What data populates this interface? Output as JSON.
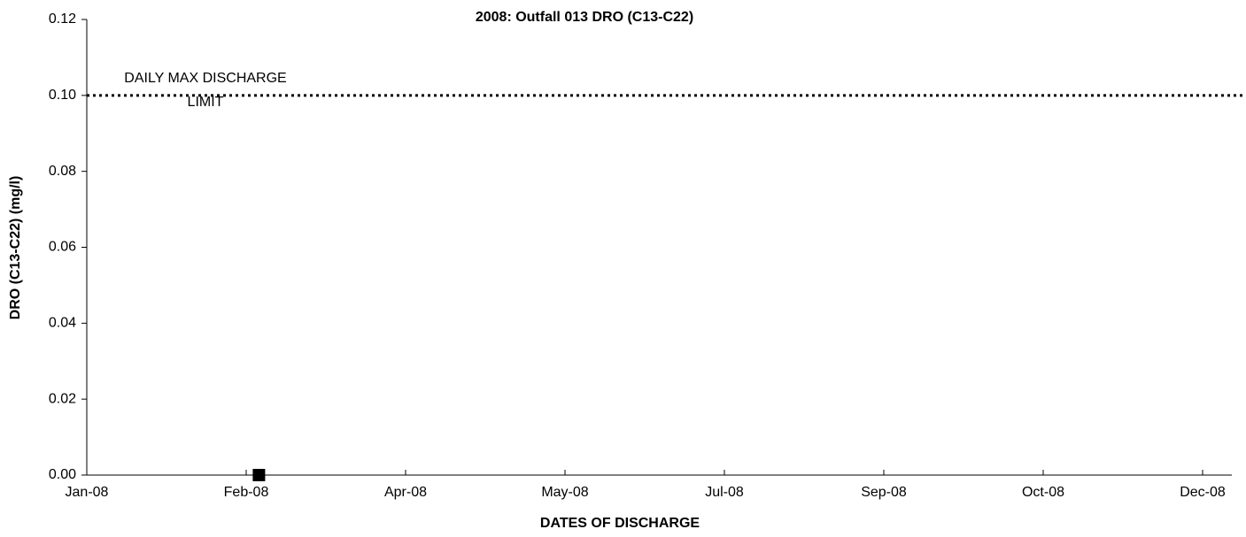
{
  "chart_data": {
    "type": "scatter",
    "title": "2008: Outfall 013 DRO (C13-C22)",
    "xlabel": "DATES OF DISCHARGE",
    "ylabel": "DRO (C13-C22) (mg/l)",
    "series": [
      {
        "color": "#000000",
        "x": [
          54
        ],
        "values": [
          0
        ]
      }
    ],
    "limit": {
      "value": 0.1,
      "label": [
        "DAILY MAX DISCHARGE",
        "LIMIT"
      ],
      "color": "#000000"
    },
    "xlim": [
      0,
      350
    ],
    "xticks": [
      {
        "value": 0,
        "label": "Jan-08"
      },
      {
        "value": 50,
        "label": "Feb-08"
      },
      {
        "value": 100,
        "label": "Apr-08"
      },
      {
        "value": 150,
        "label": "May-08"
      },
      {
        "value": 200,
        "label": "Jul-08"
      },
      {
        "value": 250,
        "label": "Sep-08"
      },
      {
        "value": 300,
        "label": "Oct-08"
      },
      {
        "value": 350,
        "label": "Dec-08"
      }
    ],
    "ylim": [
      0,
      0.12
    ],
    "yticks": [
      {
        "value": 0,
        "label": "0.00"
      },
      {
        "value": 0.02,
        "label": "0.02"
      },
      {
        "value": 0.04,
        "label": "0.04"
      },
      {
        "value": 0.06,
        "label": "0.06"
      },
      {
        "value": 0.08,
        "label": "0.08"
      },
      {
        "value": 0.1,
        "label": "0.10"
      },
      {
        "value": 0.12,
        "label": "0.12"
      }
    ],
    "grid": false
  }
}
